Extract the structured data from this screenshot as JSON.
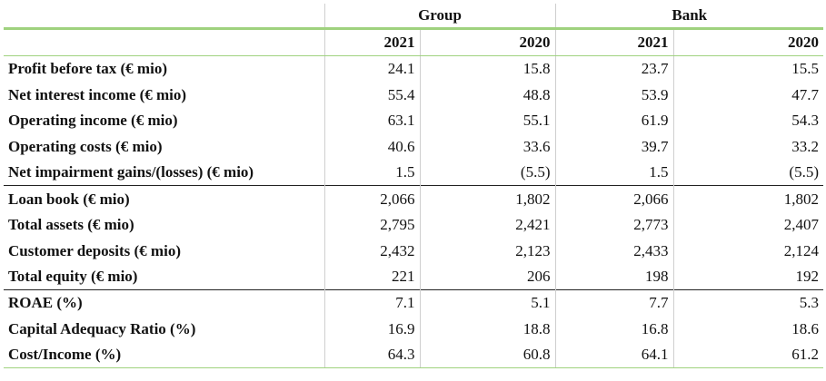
{
  "header": {
    "groups": [
      "Group",
      "Bank"
    ],
    "years": [
      "2021",
      "2020",
      "2021",
      "2020"
    ]
  },
  "rows": [
    {
      "label": "Profit before tax (€ mio)",
      "values": [
        "24.1",
        "15.8",
        "23.7",
        "15.5"
      ]
    },
    {
      "label": "Net interest income (€ mio)",
      "values": [
        "55.4",
        "48.8",
        "53.9",
        "47.7"
      ]
    },
    {
      "label": "Operating income (€ mio)",
      "values": [
        "63.1",
        "55.1",
        "61.9",
        "54.3"
      ]
    },
    {
      "label": "Operating costs (€ mio)",
      "values": [
        "40.6",
        "33.6",
        "39.7",
        "33.2"
      ]
    },
    {
      "label": "Net impairment gains/(losses) (€ mio)",
      "values": [
        "1.5",
        "(5.5)",
        "1.5",
        "(5.5)"
      ]
    },
    {
      "label": "Loan book (€ mio)",
      "values": [
        "2,066",
        "1,802",
        "2,066",
        "1,802"
      ]
    },
    {
      "label": "Total assets (€ mio)",
      "values": [
        "2,795",
        "2,421",
        "2,773",
        "2,407"
      ]
    },
    {
      "label": "Customer deposits (€ mio)",
      "values": [
        "2,432",
        "2,123",
        "2,433",
        "2,124"
      ]
    },
    {
      "label": "Total equity (€ mio)",
      "values": [
        "221",
        "206",
        "198",
        "192"
      ]
    },
    {
      "label": "ROAE (%)",
      "values": [
        "7.1",
        "5.1",
        "7.7",
        "5.3"
      ]
    },
    {
      "label": "Capital Adequacy Ratio (%)",
      "values": [
        "16.9",
        "18.8",
        "16.8",
        "18.6"
      ]
    },
    {
      "label": "Cost/Income (%)",
      "values": [
        "64.3",
        "60.8",
        "64.1",
        "61.2"
      ]
    }
  ]
}
